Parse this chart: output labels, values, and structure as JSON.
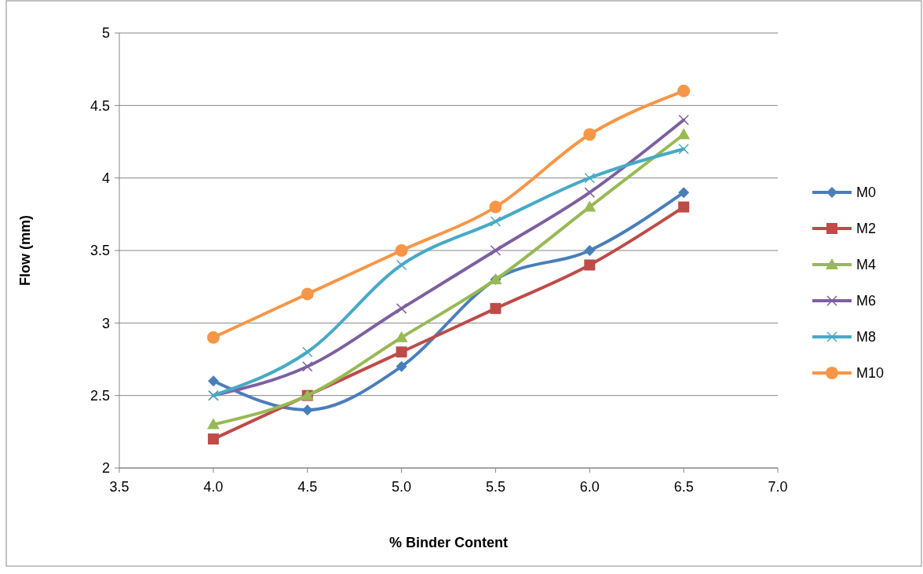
{
  "chart_data": {
    "type": "line",
    "xlabel": "% Binder Content",
    "ylabel": "Flow (mm)",
    "x": [
      4.0,
      4.5,
      5.0,
      5.5,
      6.0,
      6.5
    ],
    "series": [
      {
        "name": "M0",
        "color": "#4a7ebb",
        "marker": "diamond",
        "values": [
          2.6,
          2.4,
          2.7,
          3.3,
          3.5,
          3.9
        ]
      },
      {
        "name": "M2",
        "color": "#be4b48",
        "marker": "square",
        "values": [
          2.2,
          2.5,
          2.8,
          3.1,
          3.4,
          3.8
        ]
      },
      {
        "name": "M4",
        "color": "#98b954",
        "marker": "triangle",
        "values": [
          2.3,
          2.5,
          2.9,
          3.3,
          3.8,
          4.3
        ]
      },
      {
        "name": "M6",
        "color": "#7d60a0",
        "marker": "cross",
        "values": [
          2.5,
          2.7,
          3.1,
          3.5,
          3.9,
          4.4
        ]
      },
      {
        "name": "M8",
        "color": "#46aac5",
        "marker": "cross",
        "values": [
          2.5,
          2.8,
          3.4,
          3.7,
          4.0,
          4.2
        ]
      },
      {
        "name": "M10",
        "color": "#f79646",
        "marker": "circle",
        "values": [
          2.9,
          3.2,
          3.5,
          3.8,
          4.3,
          4.6
        ]
      }
    ],
    "xlim": [
      3.5,
      7.0
    ],
    "xticks": [
      3.5,
      {
        "value": 4,
        "label": "4.0"
      },
      4.5,
      {
        "value": 5,
        "label": "5.0"
      },
      5.5,
      {
        "value": 6,
        "label": "6.0"
      },
      6.5,
      {
        "value": 7,
        "label": "7.0"
      }
    ],
    "ylim": [
      2,
      5
    ],
    "yticks": [
      2,
      2.5,
      3,
      3.5,
      4,
      4.5,
      5
    ],
    "grid": "y",
    "legend": "right",
    "line_style": "solid"
  }
}
